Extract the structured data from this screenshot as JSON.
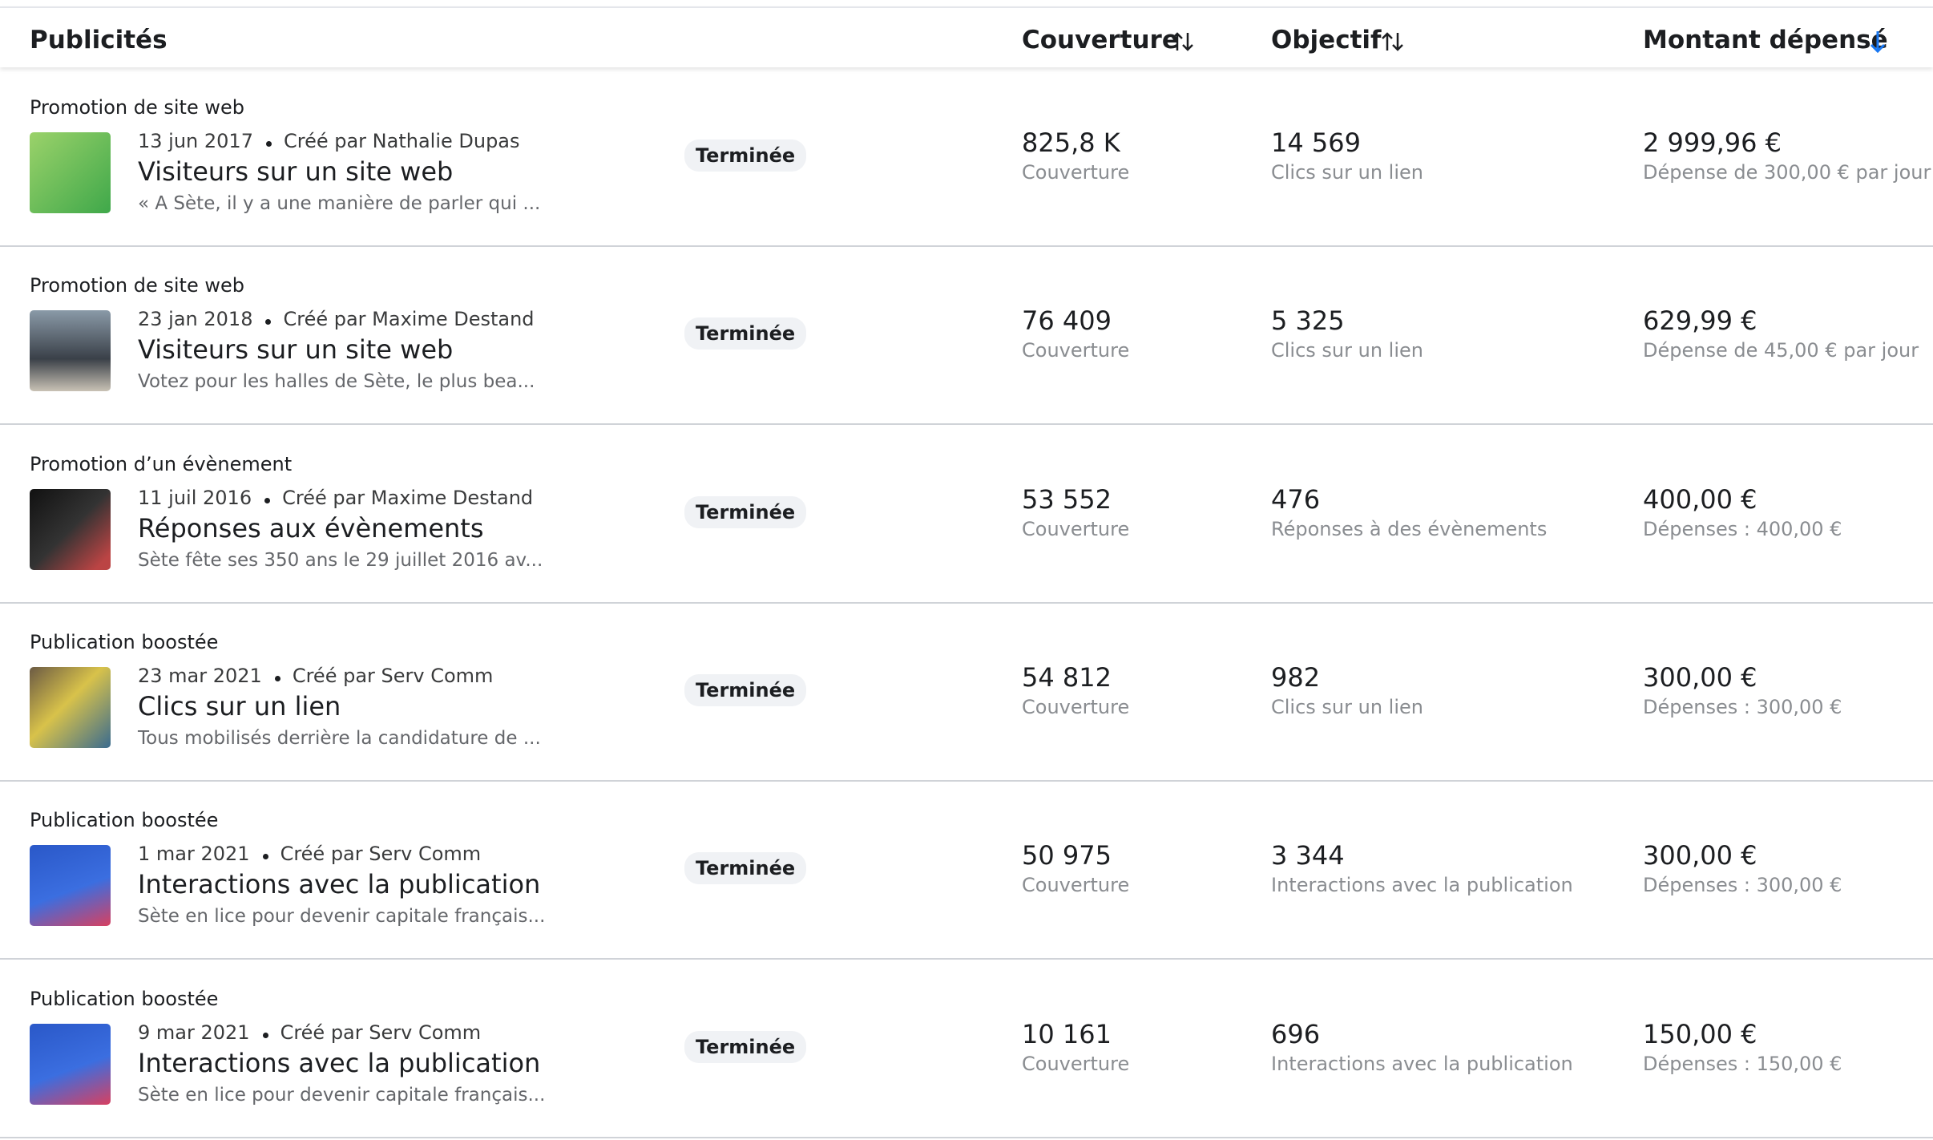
{
  "header": {
    "title": "Publicités",
    "columns": [
      "Couverture",
      "Objectif",
      "Montant dépensé"
    ]
  },
  "rows": [
    {
      "category": "Promotion de site web",
      "date": "13 jun 2017",
      "creator": "Créé par Nathalie Dupas",
      "title": "Visiteurs sur un site web",
      "description": "« A Sète, il y a une manière de parler qui ...",
      "status": "Terminée",
      "reach": "825,8 K",
      "reach_label": "Couverture",
      "result": "14 569",
      "result_label": "Clics sur un lien",
      "spent": "2 999,96 €",
      "spent_label": "Dépense de 300,00 € par jour"
    },
    {
      "category": "Promotion de site web",
      "date": "23 jan 2018",
      "creator": "Créé par Maxime Destand",
      "title": "Visiteurs sur un site web",
      "description": "Votez pour les halles de Sète, le plus bea...",
      "status": "Terminée",
      "reach": "76 409",
      "reach_label": "Couverture",
      "result": "5 325",
      "result_label": "Clics sur un lien",
      "spent": "629,99 €",
      "spent_label": "Dépense de 45,00 € par jour"
    },
    {
      "category": "Promotion d’un évènement",
      "date": "11 juil 2016",
      "creator": "Créé par Maxime Destand",
      "title": "Réponses aux évènements",
      "description": "Sète fête ses 350 ans le 29 juillet 2016 av...",
      "status": "Terminée",
      "reach": "53 552",
      "reach_label": "Couverture",
      "result": "476",
      "result_label": "Réponses à des évènements",
      "spent": "400,00 €",
      "spent_label": "Dépenses : 400,00 €"
    },
    {
      "category": "Publication boostée",
      "date": "23 mar 2021",
      "creator": "Créé par Serv Comm",
      "title": "Clics sur un lien",
      "description": "Tous mobilisés derrière la candidature de ...",
      "status": "Terminée",
      "reach": "54 812",
      "reach_label": "Couverture",
      "result": "982",
      "result_label": "Clics sur un lien",
      "spent": "300,00 €",
      "spent_label": "Dépenses : 300,00 €"
    },
    {
      "category": "Publication boostée",
      "date": "1 mar 2021",
      "creator": "Créé par Serv Comm",
      "title": "Interactions avec la publication",
      "description": "Sète en lice pour devenir capitale français...",
      "status": "Terminée",
      "reach": "50 975",
      "reach_label": "Couverture",
      "result": "3 344",
      "result_label": "Interactions avec la publication",
      "spent": "300,00 €",
      "spent_label": "Dépenses : 300,00 €"
    },
    {
      "category": "Publication boostée",
      "date": "9 mar 2021",
      "creator": "Créé par Serv Comm",
      "title": "Interactions avec la publication",
      "description": "Sète en lice pour devenir capitale français...",
      "status": "Terminée",
      "reach": "10 161",
      "reach_label": "Couverture",
      "result": "696",
      "result_label": "Interactions avec la publication",
      "spent": "150,00 €",
      "spent_label": "Dépenses : 150,00 €"
    }
  ]
}
